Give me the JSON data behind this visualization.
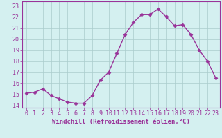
{
  "x": [
    0,
    1,
    2,
    3,
    4,
    5,
    6,
    7,
    8,
    9,
    10,
    11,
    12,
    13,
    14,
    15,
    16,
    17,
    18,
    19,
    20,
    21,
    22,
    23
  ],
  "y": [
    15.1,
    15.2,
    15.5,
    14.9,
    14.6,
    14.3,
    14.2,
    14.2,
    14.9,
    16.3,
    17.0,
    18.7,
    20.4,
    21.5,
    22.2,
    22.2,
    22.7,
    22.0,
    21.2,
    21.3,
    20.4,
    19.0,
    18.0,
    16.5
  ],
  "line_color": "#993399",
  "marker": "D",
  "markersize": 2.5,
  "linewidth": 1.0,
  "bg_color": "#d4f0f0",
  "grid_color": "#aacccc",
  "xlabel": "Windchill (Refroidissement éolien,°C)",
  "xlabel_fontsize": 6.5,
  "ylabel_ticks": [
    14,
    15,
    16,
    17,
    18,
    19,
    20,
    21,
    22,
    23
  ],
  "xlabel_ticks": [
    0,
    1,
    2,
    3,
    4,
    5,
    6,
    7,
    8,
    9,
    10,
    11,
    12,
    13,
    14,
    15,
    16,
    17,
    18,
    19,
    20,
    21,
    22,
    23
  ],
  "xlim": [
    -0.5,
    23.5
  ],
  "ylim": [
    13.8,
    23.4
  ],
  "tick_fontsize": 6,
  "tick_color": "#993399",
  "axis_color": "#993399",
  "spine_color": "#993399"
}
